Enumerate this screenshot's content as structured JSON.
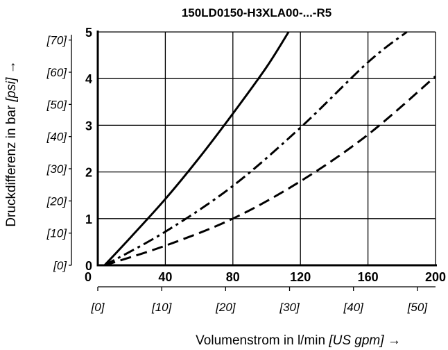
{
  "chart_data": {
    "type": "line",
    "title": "150LD0150-H3XLA00-...-R5",
    "xlabel": "Volumenstrom in l/min",
    "xlabel_unit": "[US gpm] →",
    "ylabel": "Druckdifferenz in bar",
    "ylabel_unit": "[psi] →",
    "xlim": [
      0,
      200
    ],
    "ylim": [
      0,
      5
    ],
    "x_ticks": [
      "0",
      "40",
      "80",
      "120",
      "160",
      "200"
    ],
    "y_ticks": [
      "0",
      "1",
      "2",
      "3",
      "4",
      "5"
    ],
    "x_secondary_ticks": [
      "[0]",
      "[10]",
      "[20]",
      "[30]",
      "[40]",
      "[50]"
    ],
    "y_secondary_ticks": [
      "[0]",
      "[10]",
      "[20]",
      "[30]",
      "[40]",
      "[50]",
      "[60]",
      "[70]"
    ],
    "grid": true,
    "series": [
      {
        "style": "solid",
        "x": [
          4,
          20,
          40,
          60,
          80,
          100,
          113
        ],
        "y": [
          0,
          0.62,
          1.42,
          2.3,
          3.25,
          4.25,
          5.0
        ]
      },
      {
        "style": "dash-dot",
        "x": [
          4,
          40,
          80,
          120,
          160,
          183
        ],
        "y": [
          0,
          0.72,
          1.7,
          2.95,
          4.35,
          5.0
        ]
      },
      {
        "style": "dashed",
        "x": [
          4,
          40,
          80,
          120,
          160,
          200
        ],
        "y": [
          0,
          0.42,
          1.0,
          1.8,
          2.8,
          4.05
        ]
      }
    ]
  }
}
